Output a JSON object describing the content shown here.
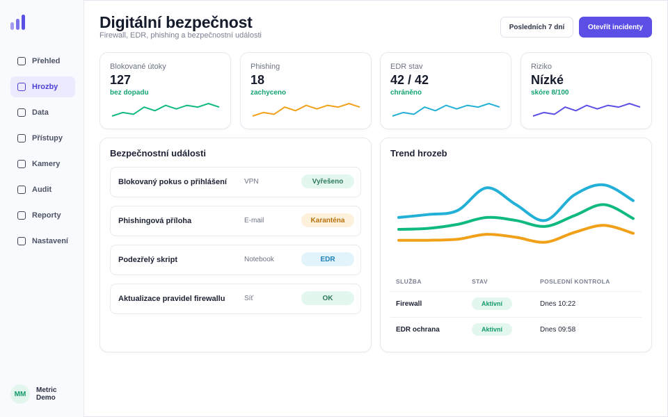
{
  "sidebar": {
    "items": [
      {
        "label": "Přehled",
        "active": false
      },
      {
        "label": "Hrozby",
        "active": true
      },
      {
        "label": "Data",
        "active": false
      },
      {
        "label": "Přístupy",
        "active": false
      },
      {
        "label": "Kamery",
        "active": false
      },
      {
        "label": "Audit",
        "active": false
      },
      {
        "label": "Reporty",
        "active": false
      },
      {
        "label": "Nastavení",
        "active": false
      }
    ],
    "user": {
      "initials": "MM",
      "name": "Metric Demo"
    }
  },
  "header": {
    "title": "Digitální bezpečnost",
    "subtitle": "Firewall, EDR, phishing a bezpečnostní události",
    "range_button": "Posledních 7 dní",
    "primary_button": "Otevřít incidenty"
  },
  "kpis": [
    {
      "label": "Blokované útoky",
      "value": "127",
      "note": "bez dopadu",
      "color": "#10b981",
      "trend": [
        3,
        5,
        4,
        8,
        6,
        9,
        7,
        9,
        8,
        10,
        8
      ]
    },
    {
      "label": "Phishing",
      "value": "18",
      "note": "zachyceno",
      "color": "#f0a119",
      "trend": [
        3,
        5,
        4,
        8,
        6,
        9,
        7,
        9,
        8,
        10,
        8
      ]
    },
    {
      "label": "EDR stav",
      "value": "42 / 42",
      "note": "chráněno",
      "color": "#22b0d6",
      "trend": [
        3,
        5,
        4,
        8,
        6,
        9,
        7,
        9,
        8,
        10,
        8
      ]
    },
    {
      "label": "Riziko",
      "value": "Nízké",
      "note": "skóre 8/100",
      "color": "#5b4fe6",
      "trend": [
        3,
        5,
        4,
        8,
        6,
        9,
        7,
        9,
        8,
        10,
        8
      ]
    }
  ],
  "events": {
    "title": "Bezpečnostní události",
    "items": [
      {
        "name": "Blokovaný pokus o přihlášení",
        "source": "VPN",
        "status": "Vyřešeno",
        "status_bg": "#e4f7ee",
        "status_fg": "#2d7a5b"
      },
      {
        "name": "Phishingová příloha",
        "source": "E-mail",
        "status": "Karanténa",
        "status_bg": "#fdf1dc",
        "status_fg": "#b8700c"
      },
      {
        "name": "Podezřelý skript",
        "source": "Notebook",
        "status": "EDR",
        "status_bg": "#e3f3fc",
        "status_fg": "#1d7fb8"
      },
      {
        "name": "Aktualizace pravidel firewallu",
        "source": "Síť",
        "status": "OK",
        "status_bg": "#e4f7ee",
        "status_fg": "#2d7a5b"
      }
    ]
  },
  "trend": {
    "title": "Trend hrozeb",
    "series": [
      {
        "color": "#22b0d6",
        "values": [
          45,
          48,
          52,
          75,
          58,
          42,
          68,
          78,
          62
        ]
      },
      {
        "color": "#10b981",
        "values": [
          33,
          34,
          38,
          45,
          42,
          36,
          47,
          58,
          44
        ]
      },
      {
        "color": "#f0a119",
        "values": [
          22,
          22,
          23,
          28,
          25,
          20,
          30,
          37,
          29
        ]
      }
    ],
    "table": {
      "headers": [
        "SLUŽBA",
        "STAV",
        "POSLEDNÍ KONTROLA"
      ],
      "rows": [
        {
          "service": "Firewall",
          "status": "Aktivní",
          "last": "Dnes 10:22"
        },
        {
          "service": "EDR ochrana",
          "status": "Aktivní",
          "last": "Dnes 09:58"
        }
      ]
    }
  }
}
